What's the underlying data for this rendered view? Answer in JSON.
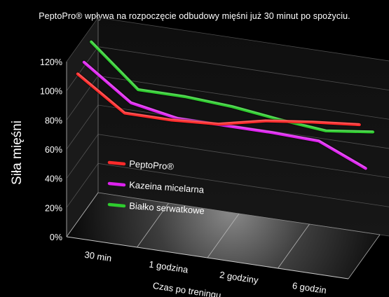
{
  "title": "PeptoPro® wpływa na rozpoczęcie odbudowy mięśni już 30 minut po spożyciu.",
  "chart_data": {
    "type": "line",
    "title": "PeptoPro® wpływa na rozpoczęcie odbudowy mięśni już 30 minut po spożyciu.",
    "xlabel": "Czas po treningu",
    "ylabel": "Siła mięśni",
    "categories": [
      "30 min",
      "1 godzina",
      "2 godziny",
      "6 godzin"
    ],
    "y_ticks": [
      "0%",
      "20%",
      "40%",
      "60%",
      "80%",
      "100%",
      "120%"
    ],
    "ylim": [
      0,
      120
    ],
    "grid": true,
    "legend_position": "center-left",
    "series": [
      {
        "name": "PeptoPro®",
        "color": "#ff2a2a",
        "x": [
          0,
          1,
          2,
          3,
          4,
          5,
          6
        ],
        "values": [
          101,
          79,
          79,
          81,
          88,
          92,
          95
        ]
      },
      {
        "name": "Kazeina micelarna",
        "color": "#dd22ee",
        "x": [
          0,
          1,
          2,
          3,
          4,
          5,
          6
        ],
        "values": [
          103,
          80,
          74,
          74,
          74,
          73,
          59
        ]
      },
      {
        "name": "Białko serwatkowe",
        "color": "#2ecc2e",
        "x": [
          0,
          1,
          2,
          3,
          4,
          5,
          6
        ],
        "values": [
          110,
          82,
          82,
          80,
          76,
          73,
          77
        ]
      }
    ]
  }
}
